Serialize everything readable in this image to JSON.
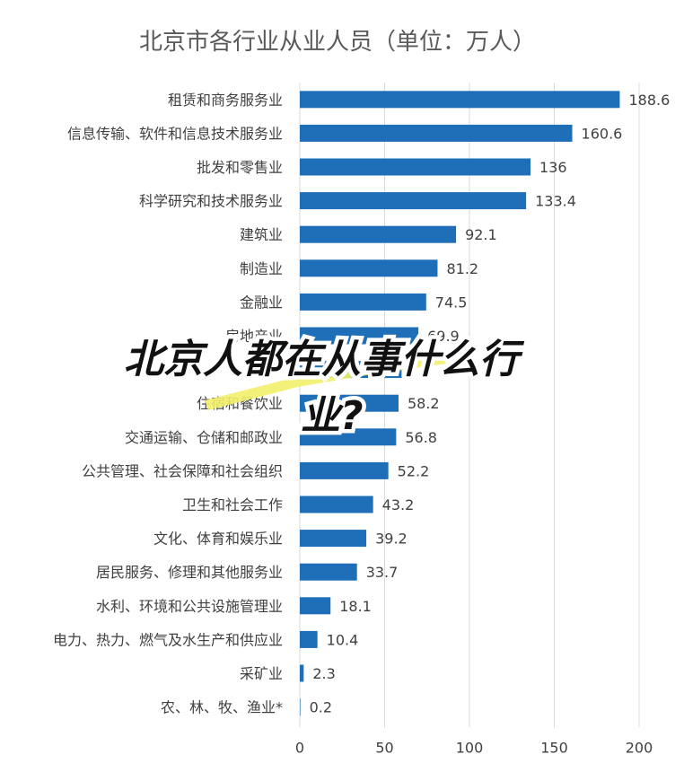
{
  "overlay": {
    "line1": "北京人都在从事什么行",
    "line2": "业?"
  },
  "chart_data": {
    "type": "bar",
    "orientation": "horizontal",
    "title": "北京市各行业从业人员（单位：万人）",
    "categories": [
      "租赁和商务服务业",
      "信息传输、软件和信息技术服务业",
      "批发和零售业",
      "科学研究和技术服务业",
      "建筑业",
      "制造业",
      "金融业",
      "房地产业",
      "",
      "住宿和餐饮业",
      "交通运输、仓储和邮政业",
      "公共管理、社会保障和社会组织",
      "卫生和社会工作",
      "文化、体育和娱乐业",
      "居民服务、修理和其他服务业",
      "水利、环境和公共设施管理业",
      "电力、热力、燃气及水生产和供应业",
      "采矿业",
      "农、林、牧、渔业*"
    ],
    "values": [
      188.6,
      160.6,
      136,
      133.4,
      92.1,
      81.2,
      74.5,
      69.9,
      60,
      58.2,
      56.8,
      52.2,
      43.2,
      39.2,
      33.7,
      18.1,
      10.4,
      2.3,
      0.2
    ],
    "value_labels": [
      "188.6",
      "160.6",
      "136",
      "133.4",
      "92.1",
      "81.2",
      "74.5",
      "69.9",
      "",
      "58.2",
      "56.8",
      "52.2",
      "43.2",
      "39.2",
      "33.7",
      "18.1",
      "10.4",
      "2.3",
      "0.2"
    ],
    "xlim": [
      0,
      200
    ],
    "xticks": [
      "0",
      "50",
      "100",
      "150",
      "200"
    ],
    "grid": true,
    "bar_color": "#1f6fb8"
  }
}
